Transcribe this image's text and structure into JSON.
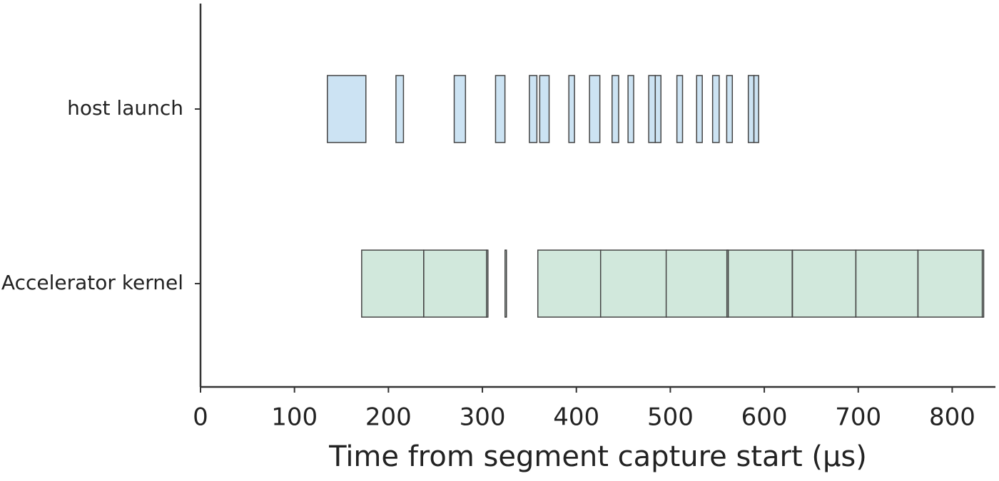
{
  "chart_data": {
    "type": "broken_barh",
    "x_label": "Time from segment capture start (µs)",
    "xlim": [
      0,
      846
    ],
    "xticks": [
      0,
      100,
      200,
      300,
      400,
      500,
      600,
      700,
      800
    ],
    "rows": [
      {
        "label": "host launch",
        "color": "#cce3f3",
        "starts": [
          135,
          208,
          270,
          314,
          350,
          361,
          392,
          414,
          438,
          455,
          477,
          484,
          507,
          528,
          545,
          560,
          583,
          589
        ],
        "widths": [
          41,
          8,
          12,
          10,
          8,
          10,
          6,
          11,
          7,
          6,
          7,
          6,
          6,
          6,
          7,
          6,
          6,
          5
        ]
      },
      {
        "label": "Accelerator kernel",
        "color": "#d1e8dc",
        "starts": [
          171.5,
          237.6,
          304.4,
          324.1,
          359,
          425.8,
          495.6,
          560.2,
          561.7,
          630,
          697.5,
          763.6,
          832
        ],
        "widths": [
          66,
          67,
          1.5,
          1.5,
          67,
          70,
          65,
          1.5,
          68,
          67.5,
          66,
          69,
          1.5
        ]
      }
    ]
  }
}
